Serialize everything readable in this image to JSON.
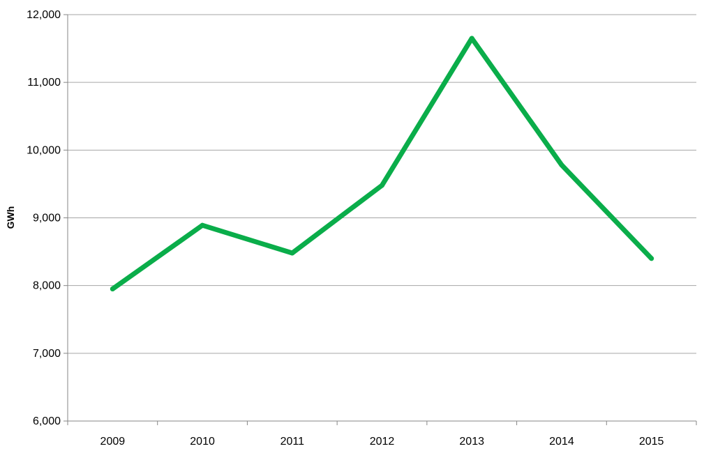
{
  "chart_data": {
    "type": "line",
    "x": [
      "2009",
      "2010",
      "2011",
      "2012",
      "2013",
      "2014",
      "2015"
    ],
    "series": [
      {
        "values": [
          7950,
          8890,
          8480,
          9480,
          11650,
          9780,
          8400
        ],
        "color": "#0aad4a"
      }
    ],
    "ylabel": "GWh",
    "ylim": [
      6000,
      12000
    ],
    "yticks": [
      6000,
      7000,
      8000,
      9000,
      10000,
      11000,
      12000
    ],
    "ytick_labels": [
      "6,000",
      "7,000",
      "8,000",
      "9,000",
      "10,000",
      "11,000",
      "12,000"
    ],
    "grid": true,
    "gridline_color": "#a6a6a6",
    "axis_color": "#868686",
    "legend": "none"
  }
}
